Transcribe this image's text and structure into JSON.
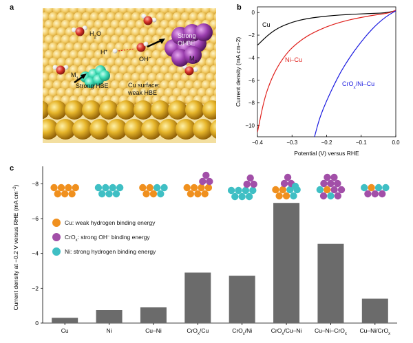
{
  "panels": {
    "a": {
      "letter": "a",
      "labels": {
        "h2o": "H",
        "h2o_sub": "2",
        "h2o_tail": "O",
        "hplus": "H",
        "hplus_sup": "+",
        "oh": "OH",
        "oh_sup": "−",
        "m1": "M",
        "m1_sub": "1",
        "m2": "M",
        "m2_sub": "2",
        "strong_hbe": "Strong HBE",
        "strong_ohbe_1": "Strong",
        "strong_ohbe_2": "OHBE",
        "cu_surface_1": "Cu surface:",
        "cu_surface_2": "weak HBE"
      },
      "colors": {
        "copper": "#d9a21c",
        "cr_oxide": "#8a3a9c",
        "ni": "#3fcfae",
        "oxygen": "#d23a2a",
        "hydrogen": "#f2f2f2"
      }
    },
    "b": {
      "letter": "b",
      "chart_data": {
        "type": "line",
        "xlabel": "Potential (V) versus RHE",
        "ylabel": "Current density (mA cm−2)",
        "xlim": [
          -0.4,
          0.0
        ],
        "ylim": [
          -11,
          0.5
        ],
        "xticks": [
          -0.4,
          -0.3,
          -0.2,
          -0.1,
          0.0
        ],
        "xtick_labels": [
          "−0.4",
          "−0.3",
          "−0.2",
          "−0.1",
          "0.0"
        ],
        "yticks": [
          0,
          -2,
          -4,
          -6,
          -8,
          -10
        ],
        "ytick_labels": [
          "0",
          "−2",
          "−4",
          "−6",
          "−8",
          "−10"
        ],
        "series": [
          {
            "name": "Cu",
            "color": "#000000",
            "x": [
              -0.4,
              -0.37,
              -0.34,
              -0.3,
              -0.26,
              -0.22,
              -0.18,
              -0.14,
              -0.1,
              -0.06,
              -0.03,
              0.0
            ],
            "y": [
              -2.9,
              -2.0,
              -1.35,
              -0.85,
              -0.55,
              -0.38,
              -0.26,
              -0.18,
              -0.12,
              -0.07,
              -0.03,
              0.15
            ]
          },
          {
            "name": "Ni–Cu",
            "color": "#e0201c",
            "x": [
              -0.4,
              -0.38,
              -0.36,
              -0.34,
              -0.32,
              -0.3,
              -0.27,
              -0.24,
              -0.2,
              -0.16,
              -0.12,
              -0.08,
              -0.05,
              -0.02,
              0.0
            ],
            "y": [
              -10.6,
              -7.6,
              -5.9,
              -4.7,
              -3.8,
              -3.1,
              -2.35,
              -1.8,
              -1.25,
              -0.85,
              -0.55,
              -0.32,
              -0.17,
              -0.05,
              0.2
            ]
          },
          {
            "name": "CrOx/Ni–Cu",
            "color": "#1a1ae0",
            "x": [
              -0.235,
              -0.22,
              -0.2,
              -0.18,
              -0.16,
              -0.14,
              -0.12,
              -0.1,
              -0.08,
              -0.06,
              -0.04,
              -0.02,
              0.0
            ],
            "y": [
              -11.0,
              -9.3,
              -7.8,
              -6.5,
              -5.3,
              -4.3,
              -3.4,
              -2.6,
              -1.85,
              -1.2,
              -0.65,
              -0.2,
              0.15
            ]
          }
        ],
        "curve_labels": {
          "cu": "Cu",
          "nicu": "Ni–Cu",
          "crox_main": "CrO",
          "crox_sub": "x",
          "crox_tail": "/Ni–Cu"
        }
      }
    },
    "c": {
      "letter": "c",
      "chart_data": {
        "type": "bar",
        "ylabel_main": "Current density at −0.2 V versus RHE (mA cm",
        "ylabel_sup": "−2",
        "ylabel_close": ")",
        "ylim": [
          0,
          -9
        ],
        "yticks": [
          0,
          -2,
          -4,
          -6,
          -8
        ],
        "ytick_labels": [
          "0",
          "−2",
          "−4",
          "−6",
          "−8"
        ],
        "categories": [
          "Cu",
          "Ni",
          "Cu–Ni",
          "CrOx/Cu",
          "CrOx/Ni",
          "CrOx/Cu–Ni",
          "Cu–Ni–CrOx",
          "Cu–Ni/CrOx"
        ],
        "values": [
          -0.3,
          -0.75,
          -0.9,
          -2.9,
          -2.72,
          -6.9,
          -4.55,
          -1.4
        ],
        "bar_color": "#6b6b6b",
        "legend": [
          {
            "color": "#f0901e",
            "main": "Cu: weak hydrogen binding energy"
          },
          {
            "color": "#a24fa8",
            "main": "CrO",
            "sub": "x",
            "tail": ": strong OH",
            "sup": "−",
            "after": " binding energy"
          },
          {
            "color": "#3fbfc4",
            "main": "Ni: strong hydrogen binding energy"
          }
        ]
      }
    }
  }
}
